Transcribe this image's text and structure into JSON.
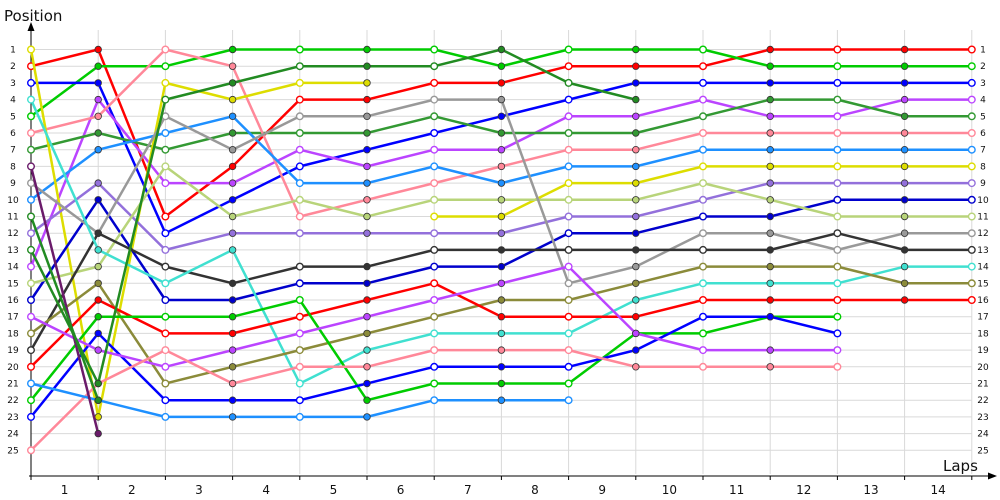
{
  "chart_data": {
    "type": "line",
    "title": "",
    "ylabel": "Position",
    "xlabel": "Laps",
    "x_ticks": [
      "1",
      "2",
      "3",
      "4",
      "5",
      "6",
      "7",
      "8",
      "9",
      "10",
      "11",
      "12",
      "13",
      "14"
    ],
    "y_ticks": [
      1,
      2,
      3,
      4,
      5,
      6,
      7,
      8,
      9,
      10,
      11,
      12,
      13,
      14,
      15,
      16,
      17,
      18,
      19,
      20,
      21,
      22,
      23,
      24,
      25
    ],
    "ylim": [
      1,
      25
    ],
    "y_inverted": true,
    "grid": true,
    "x_points": [
      0,
      1,
      2,
      3,
      4,
      5,
      6,
      7,
      8,
      9,
      10,
      11,
      12,
      13,
      14
    ],
    "series": [
      {
        "color": "#ff0000",
        "values": [
          2,
          1,
          11,
          8,
          4,
          4,
          3,
          3,
          2,
          2,
          2,
          1,
          1,
          1,
          1
        ]
      },
      {
        "color": "#00cc00",
        "values": [
          5,
          2,
          2,
          1,
          1,
          1,
          1,
          2,
          1,
          1,
          1,
          2,
          2,
          2,
          2
        ]
      },
      {
        "color": "#0000ff",
        "values": [
          3,
          3,
          12,
          10,
          8,
          7,
          6,
          5,
          4,
          3,
          3,
          3,
          3,
          3,
          3
        ]
      },
      {
        "color": "#bb44ff",
        "values": [
          14,
          4,
          9,
          9,
          7,
          8,
          7,
          7,
          5,
          5,
          4,
          5,
          5,
          4,
          4
        ]
      },
      {
        "color": "#339933",
        "values": [
          7,
          6,
          7,
          6,
          6,
          6,
          5,
          6,
          6,
          6,
          5,
          4,
          4,
          5,
          5
        ]
      },
      {
        "color": "#ff8899",
        "values": [
          6,
          5,
          1,
          2,
          11,
          10,
          9,
          8,
          7,
          7,
          6,
          6,
          6,
          6,
          6
        ]
      },
      {
        "color": "#1e90ff",
        "values": [
          10,
          7,
          6,
          5,
          9,
          9,
          8,
          9,
          8,
          8,
          7,
          7,
          7,
          7,
          7
        ]
      },
      {
        "color": "#dddd00",
        "values": [
          1,
          23,
          3,
          4,
          3,
          3,
          null,
          null,
          null,
          null,
          null,
          null,
          null,
          null,
          null
        ]
      },
      {
        "color": "#dddd00",
        "values": [
          null,
          null,
          null,
          null,
          null,
          null,
          11,
          11,
          9,
          9,
          8,
          8,
          8,
          8,
          8
        ]
      },
      {
        "color": "#9370db",
        "values": [
          12,
          9,
          13,
          12,
          12,
          12,
          12,
          12,
          11,
          11,
          10,
          9,
          9,
          9,
          9
        ]
      },
      {
        "color": "#0000cc",
        "values": [
          16,
          10,
          16,
          16,
          15,
          15,
          14,
          14,
          12,
          12,
          11,
          11,
          10,
          10,
          10
        ]
      },
      {
        "color": "#b8d47a",
        "values": [
          15,
          14,
          8,
          11,
          10,
          11,
          10,
          10,
          10,
          10,
          9,
          10,
          11,
          11,
          11
        ]
      },
      {
        "color": "#999999",
        "values": [
          9,
          12,
          5,
          7,
          5,
          5,
          4,
          4,
          15,
          14,
          12,
          12,
          13,
          12,
          12
        ]
      },
      {
        "color": "#333333",
        "values": [
          19,
          12,
          14,
          15,
          14,
          14,
          13,
          13,
          13,
          13,
          13,
          13,
          12,
          13,
          13
        ]
      },
      {
        "color": "#40e0d0",
        "values": [
          4,
          13,
          15,
          13,
          21,
          19,
          18,
          18,
          18,
          16,
          15,
          15,
          15,
          14,
          14
        ]
      },
      {
        "color": "#8b8b3a",
        "values": [
          18,
          15,
          21,
          20,
          19,
          18,
          17,
          16,
          16,
          15,
          14,
          14,
          14,
          15,
          15
        ]
      },
      {
        "color": "#ff0000",
        "values": [
          20,
          16,
          18,
          18,
          17,
          16,
          15,
          17,
          17,
          17,
          16,
          16,
          16,
          16,
          16
        ]
      },
      {
        "color": "#00cc00",
        "values": [
          22,
          17,
          17,
          17,
          16,
          22,
          21,
          21,
          21,
          18,
          18,
          17,
          17,
          null,
          null
        ]
      },
      {
        "color": "#0000ff",
        "values": [
          23,
          18,
          22,
          22,
          22,
          21,
          20,
          20,
          20,
          19,
          17,
          17,
          18,
          null,
          null
        ]
      },
      {
        "color": "#bb44ff",
        "values": [
          17,
          19,
          20,
          19,
          18,
          17,
          16,
          15,
          14,
          18,
          19,
          19,
          19,
          null,
          null
        ]
      },
      {
        "color": "#ff8899",
        "values": [
          25,
          21,
          19,
          21,
          20,
          20,
          19,
          19,
          19,
          20,
          20,
          20,
          20,
          null,
          null
        ]
      },
      {
        "color": "#1e90ff",
        "values": [
          21,
          22,
          23,
          23,
          23,
          23,
          22,
          22,
          22,
          null,
          null,
          null,
          null,
          null,
          null
        ]
      },
      {
        "color": "#6a1b6a",
        "values": [
          8,
          24,
          null,
          null,
          null,
          null,
          null,
          null,
          null,
          null,
          null,
          null,
          null,
          null,
          null
        ]
      },
      {
        "color": "#228b22",
        "values": [
          13,
          21,
          4,
          3,
          2,
          2,
          2,
          1,
          3,
          4,
          null,
          null,
          null,
          null,
          null
        ]
      },
      {
        "color": "#228b22",
        "values": [
          11,
          22,
          null,
          null,
          null,
          null,
          null,
          null,
          null,
          null,
          null,
          null,
          null,
          null,
          null
        ]
      }
    ]
  }
}
